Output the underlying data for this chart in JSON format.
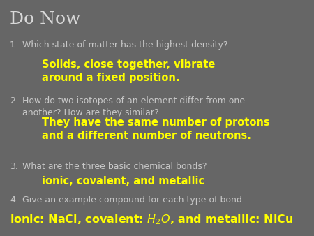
{
  "title": "Do Now",
  "title_color": "#d8d8d8",
  "title_fontsize": 18,
  "bg_color": "#666666",
  "q_color": "#c8c8c8",
  "a_yellow": "#ffff00",
  "a_cyan": "#ffff00",
  "q_fontsize": 9.0,
  "a_fontsize": 10.5,
  "last_fontsize": 11.5,
  "items": [
    {
      "num": "1.",
      "question": "Which state of matter has the highest density?",
      "answer": "Solids, close together, vibrate\naround a fixed position.",
      "answer_color": "#ffff00"
    },
    {
      "num": "2.",
      "question": "How do two isotopes of an element differ from one\nanother? How are they similar?",
      "answer": "They have the same number of protons\nand a different number of neutrons.",
      "answer_color": "#ffff00"
    },
    {
      "num": "3.",
      "question": "What are the three basic chemical bonds?",
      "answer": "ionic, covalent, and metallic",
      "answer_color": "#ffff00"
    },
    {
      "num": "4.",
      "question": "Give an example compound for each type of bond.",
      "answer": null,
      "answer_color": "#ffff00"
    }
  ],
  "last_answer_color": "#ffff00",
  "last_answer_pre": "ionic: NaCl, covalent: H",
  "last_answer_sub": "2",
  "last_answer_post": "O, and metallic: NiCu"
}
